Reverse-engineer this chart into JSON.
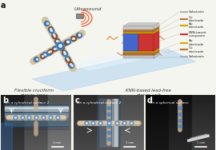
{
  "fig_width": 2.7,
  "fig_height": 1.89,
  "dpi": 100,
  "bg_color": "#f5f5f0",
  "panel_a_label": "a",
  "panel_b_label": "b",
  "panel_c_label": "c",
  "panel_d_label": "d",
  "panel_b_title": "On a cylindrical surface 1",
  "panel_c_title": "On a cylindrical surface 2",
  "panel_d_title": "On a spherical surface",
  "label_flexible": "Flexible cruciform\npienzo-array",
  "label_knn": "KNN-based lead-free\npienzo-unit",
  "label_ultrasound": "Ultrasound",
  "legend_items": [
    "Substrate",
    "Cu\nelectrode",
    "Au\nelectrode",
    "KNN-based\ncomposite",
    "Au\nelectrode",
    "Cu\nelectrode",
    "Substrate"
  ],
  "legend_colors": [
    "#b0b0b0",
    "#b87333",
    "#d4a800",
    "#cc3333",
    "#d4a800",
    "#b87333",
    "#b0b0b0"
  ],
  "arm_color": "#d4c4a0",
  "arm_edge": "#a09070",
  "node_blue": "#3377bb",
  "node_brown": "#7a4422",
  "node_white": "#e8e8e8",
  "box_red": "#cc3333",
  "box_blue": "#4466cc",
  "box_gold": "#d4a800",
  "box_gray": "#c0c0c0",
  "bg_table": "#d8eaf5",
  "panel_b_bg1": "#4a7090",
  "panel_b_bg2": "#2a4060",
  "panel_c_bg1": "#5a6878",
  "panel_c_bg2": "#3a4858",
  "panel_d_bg1": "#1a2a44",
  "panel_d_bg2": "#0a1828",
  "scale_bar_color": "#ffffff",
  "wave_color": "#ee5522",
  "wire_color": "#cc8844",
  "wire_color2": "#aa6633",
  "label_color": "#333333",
  "label_italic": true
}
